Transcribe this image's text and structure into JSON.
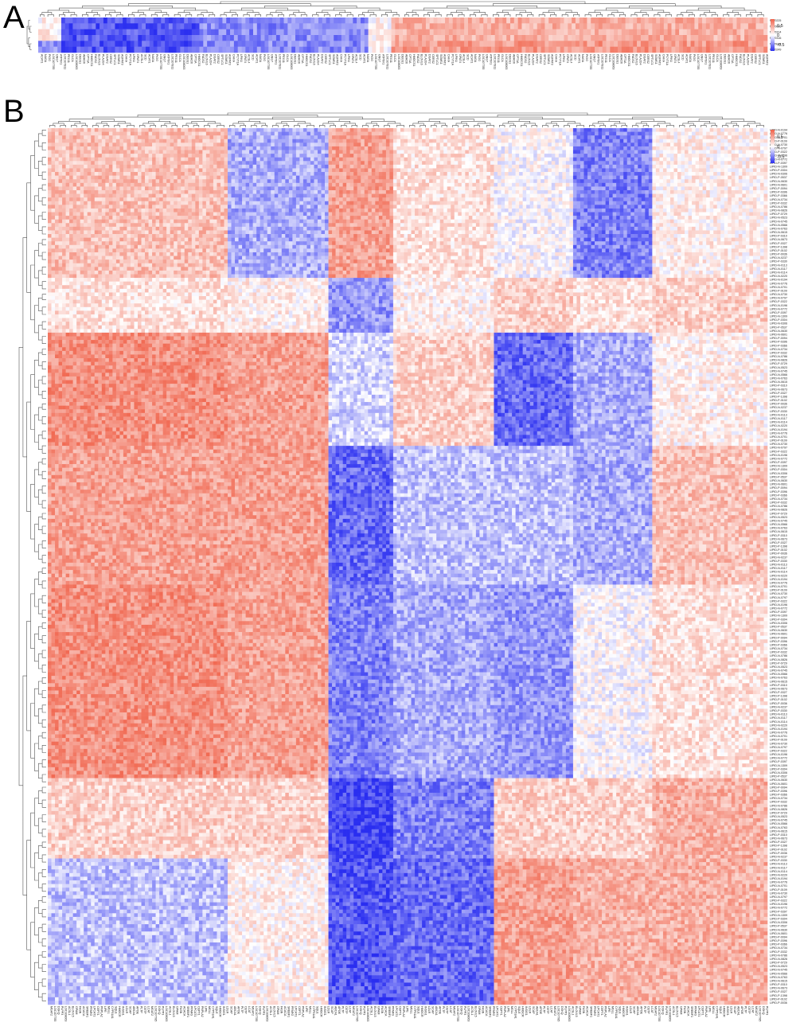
{
  "panels": [
    {
      "letter": "A"
    },
    {
      "letter": "B"
    }
  ],
  "colorscale": {
    "low_color": "#2a2ef0",
    "mid_color": "#ffffff",
    "high_color": "#f0624a"
  },
  "chart_data": [
    {
      "type": "heatmap",
      "panel": "A",
      "title": "",
      "row_labels": [
        "MW0225",
        "MW0026",
        "MW0314",
        "MW0316",
        "MW0044",
        "MW0249"
      ],
      "column_label_samples": [
        "ACAT1",
        "NAGA",
        "PIGG",
        "LOC107785",
        "GNG7",
        "ATP6V1",
        "LOC107811",
        "PEX11",
        "GLCA",
        "LOC108063",
        "DEGS1",
        "ABHD6",
        "CPT1A",
        "HMGCS1",
        "FADS2",
        "ELOVL6",
        "PLA2G4",
        "DGAT2",
        "CERS2",
        "SPTLC1",
        "SGMS1",
        "AGPAT3",
        "CHKA",
        "PCYT1A",
        "LPIN1",
        "GPAT4",
        "ACSL4",
        "SCD"
      ],
      "colorbar_ticks": [
        "0.5",
        "0",
        "-0.5"
      ],
      "value_range": [
        -1,
        1
      ],
      "annotation": "*"
    },
    {
      "type": "heatmap",
      "panel": "B",
      "title": "",
      "row_label_samples": [
        "LIPID-N-0194",
        "LIPID-N-0776",
        "LIPID-N-0701",
        "LIPID-P-0109",
        "LIPID-N-0730",
        "LIPID-N-0797",
        "LIPID-P-0322",
        "LIPID-N-0196",
        "LIPID-N-0772",
        "LIPID-P-0397",
        "LIPID-N-1309",
        "LIPID-P-0304",
        "LIPID-N-0306",
        "LIPID-P-0537",
        "LIPID-N-0630",
        "LIPID-N-0601",
        "LIPID-P-0094",
        "LIPID-P-0396",
        "LIPID-P-0366",
        "LIPID-N-0734",
        "LIPID-P-0332",
        "LIPID-N-0786",
        "LIPID-N-0826",
        "LIPID-P-0729",
        "LIPID-N-0523",
        "LIPID-N-0745",
        "LIPID-N-0566",
        "LIPID-N-0763",
        "LIPID-N-0615",
        "LIPID-P-0310",
        "LIPID-N-0673",
        "LIPID-P-0327",
        "LIPID-P-1398",
        "LIPID-P-0102",
        "LIPID-P-0036",
        "LIPID-N-0237",
        "LIPID-P-0330",
        "LIPID-N-0113",
        "LIPID-N-0117",
        "LIPID-N-0114",
        "LIPID-N-0220"
      ],
      "column_label_samples": [
        "MGAT2",
        "LOC107785",
        "DGKQ",
        "PLPP3",
        "LOC108063",
        "ACSL1",
        "ELOVL5",
        "GPAM",
        "FASN",
        "ACACA",
        "SREBF1",
        "PPARG",
        "LPCAT1",
        "CEPT1",
        "PNPLA2",
        "LIPE",
        "MGLL",
        "CYP51A1",
        "SQLE",
        "HMGCR",
        "INSIG1",
        "LDLR",
        "SCAP",
        "ABCA1",
        "APOE",
        "PLTP",
        "CETP",
        "LCAT"
      ],
      "colorbar_ticks": [
        "0.5",
        "0",
        "-0.5"
      ],
      "value_range": [
        -1,
        1
      ],
      "annotation": "*"
    }
  ]
}
